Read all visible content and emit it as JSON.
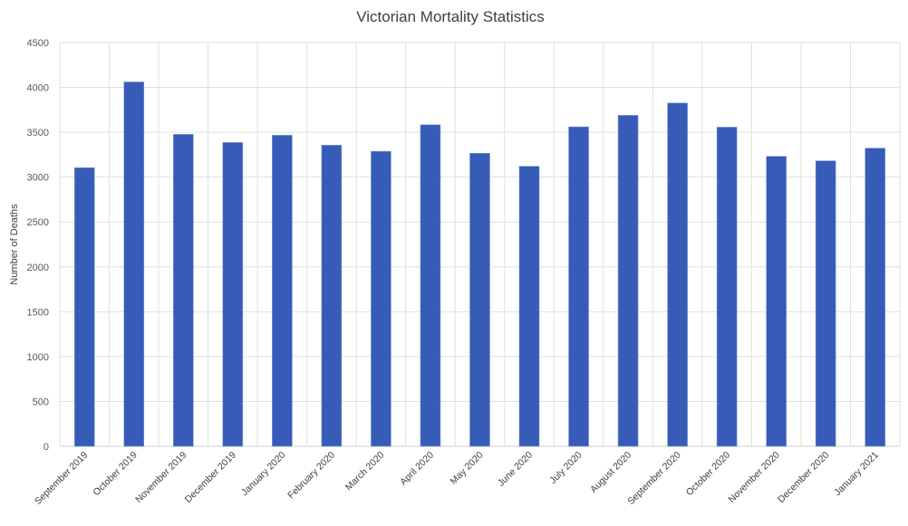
{
  "chart_data": {
    "type": "bar",
    "title": "Victorian Mortality Statistics",
    "xlabel": "",
    "ylabel": "Number of Deaths",
    "ylim": [
      0,
      4500
    ],
    "yticks": [
      0,
      500,
      1000,
      1500,
      2000,
      2500,
      3000,
      3500,
      4000,
      4500
    ],
    "grid": true,
    "legend": "none",
    "bar_color": "#365CB7",
    "categories": [
      "September 2019",
      "October 2019",
      "November 2019",
      "December 2019",
      "January 2020",
      "February 2020",
      "March 2020",
      "April 2020",
      "May 2020",
      "June 2020",
      "July 2020",
      "August 2020",
      "September 2020",
      "October 2020",
      "November 2020",
      "December 2020",
      "January 2021"
    ],
    "values": [
      3105,
      4061,
      3477,
      3386,
      3467,
      3356,
      3288,
      3584,
      3266,
      3121,
      3561,
      3689,
      3826,
      3557,
      3232,
      3182,
      3323
    ]
  }
}
